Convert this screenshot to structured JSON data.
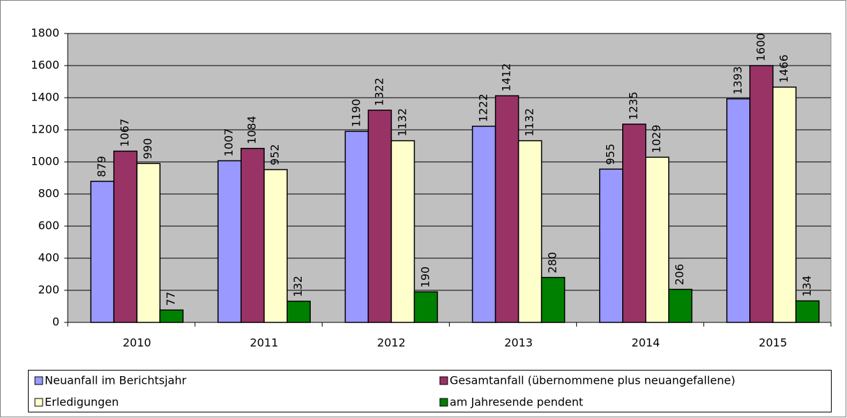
{
  "chart_data": {
    "type": "bar",
    "categories": [
      "2010",
      "2011",
      "2012",
      "2013",
      "2014",
      "2015"
    ],
    "series": [
      {
        "name": "Neuanfall im Berichtsjahr",
        "color": "#9999ff",
        "values": [
          879,
          1007,
          1190,
          1222,
          955,
          1393
        ]
      },
      {
        "name": "Gesamtanfall (übernommene plus neuangefallene)",
        "color": "#993366",
        "values": [
          1067,
          1084,
          1322,
          1412,
          1235,
          1600
        ]
      },
      {
        "name": "Erledigungen",
        "color": "#ffffcc",
        "values": [
          990,
          952,
          1132,
          1132,
          1029,
          1466
        ]
      },
      {
        "name": "am Jahresende pendent",
        "color": "#008000",
        "values": [
          77,
          132,
          190,
          280,
          206,
          134
        ]
      }
    ],
    "ylim": [
      0,
      1800
    ],
    "yticks": [
      0,
      200,
      400,
      600,
      800,
      1000,
      1200,
      1400,
      1600,
      1800
    ],
    "grid": true,
    "plot_background": "#c0c0c0",
    "legend": "bottom"
  }
}
